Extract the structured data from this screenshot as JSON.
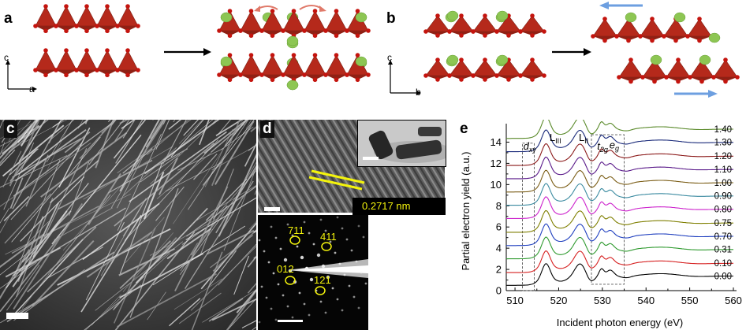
{
  "panels": {
    "a": {
      "label": "a",
      "axis_vertical": "c",
      "axis_horizontal": "a"
    },
    "b": {
      "label": "b",
      "axis_vertical": "c",
      "axis_horizontal": "b"
    },
    "c": {
      "label": "c"
    },
    "d": {
      "label": "d",
      "lattice_spacing": "0.2717 nm",
      "diffraction_spots": [
        "711",
        "411",
        "012",
        "121"
      ]
    },
    "e": {
      "label": "e"
    }
  },
  "colors": {
    "octahedron": "#b5291b",
    "oxygen": "#c4140e",
    "cation": "#8dc653",
    "shift_arrow": "#6d9fe0",
    "rotation_arrow": "#e07a6a"
  },
  "chart_data": {
    "type": "line",
    "title": "",
    "xlabel": "Incident photon energy (eV)",
    "ylabel": "Partial electron yield (a.u.)",
    "xlim": [
      508,
      560
    ],
    "ylim": [
      0,
      15
    ],
    "xticks": [
      510,
      520,
      530,
      540,
      550,
      560
    ],
    "yticks": [
      0,
      2,
      4,
      6,
      8,
      10,
      12,
      14
    ],
    "edge_labels": {
      "dxy": "d",
      "dxy_sub": "xy",
      "L3": "L",
      "L3_sub": "III",
      "L2": "L",
      "L2_sub": "II",
      "t2g": "t",
      "t2g_sub": "2g",
      "eg": "e",
      "eg_sub": "g"
    },
    "series": [
      {
        "name": "0.00",
        "offset": 0.5,
        "color": "#000000"
      },
      {
        "name": "0.10",
        "offset": 1.7,
        "color": "#d62020"
      },
      {
        "name": "0.31",
        "offset": 3.0,
        "color": "#2f9a2f"
      },
      {
        "name": "0.70",
        "offset": 4.25,
        "color": "#1f3fbf"
      },
      {
        "name": "0.75",
        "offset": 5.5,
        "color": "#7f7f00"
      },
      {
        "name": "0.80",
        "offset": 6.8,
        "color": "#cc22cc"
      },
      {
        "name": "0.90",
        "offset": 8.05,
        "color": "#3a8aa0"
      },
      {
        "name": "1.00",
        "offset": 9.3,
        "color": "#7a5c14"
      },
      {
        "name": "1.10",
        "offset": 10.55,
        "color": "#5a1a8a"
      },
      {
        "name": "1.20",
        "offset": 11.8,
        "color": "#8b1a1a"
      },
      {
        "name": "1.30",
        "offset": 13.1,
        "color": "#1a2a7a"
      },
      {
        "name": "1.40",
        "offset": 14.35,
        "color": "#5a8a2a"
      }
    ]
  }
}
